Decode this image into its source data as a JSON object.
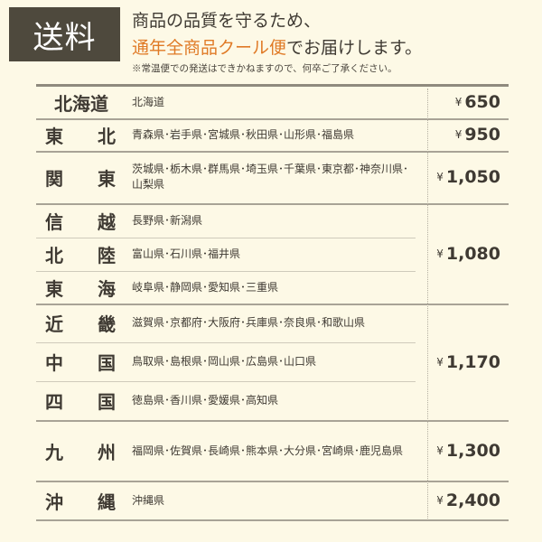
{
  "header": {
    "badge": "送料",
    "line1": "商品の品質を守るため、",
    "line2_highlight": "通年全商品クール便",
    "line2_rest": "でお届けします。",
    "note": "※常温便での発送はできかねますので、何卒ご了承ください。",
    "highlight_color": "#e07a26",
    "badge_color": "#4e493d"
  },
  "currency": "¥",
  "groups": [
    {
      "price": "650",
      "rows": [
        {
          "region": "北海道",
          "prefectures": "北海道"
        }
      ]
    },
    {
      "price": "950",
      "rows": [
        {
          "region": "東北",
          "prefectures": "青森県･岩手県･宮城県･秋田県･山形県･福島県"
        }
      ]
    },
    {
      "price": "1,050",
      "rows": [
        {
          "region": "関東",
          "prefectures": "茨城県･栃木県･群馬県･埼玉県･千葉県･東京都･神奈川県･山梨県"
        }
      ]
    },
    {
      "price": "1,080",
      "rows": [
        {
          "region": "信越",
          "prefectures": "長野県･新潟県"
        },
        {
          "region": "北陸",
          "prefectures": "富山県･石川県･福井県"
        },
        {
          "region": "東海",
          "prefectures": "岐阜県･静岡県･愛知県･三重県"
        }
      ]
    },
    {
      "price": "1,170",
      "rows": [
        {
          "region": "近畿",
          "prefectures": "滋賀県･京都府･大阪府･兵庫県･奈良県･和歌山県"
        },
        {
          "region": "中国",
          "prefectures": "鳥取県･島根県･岡山県･広島県･山口県"
        },
        {
          "region": "四国",
          "prefectures": "徳島県･香川県･愛媛県･高知県"
        }
      ]
    },
    {
      "price": "1,300",
      "rows": [
        {
          "region": "九州",
          "prefectures": "福岡県･佐賀県･長崎県･熊本県･大分県･宮崎県･鹿児島県"
        }
      ]
    },
    {
      "price": "2,400",
      "rows": [
        {
          "region": "沖縄",
          "prefectures": "沖縄県"
        }
      ]
    }
  ]
}
